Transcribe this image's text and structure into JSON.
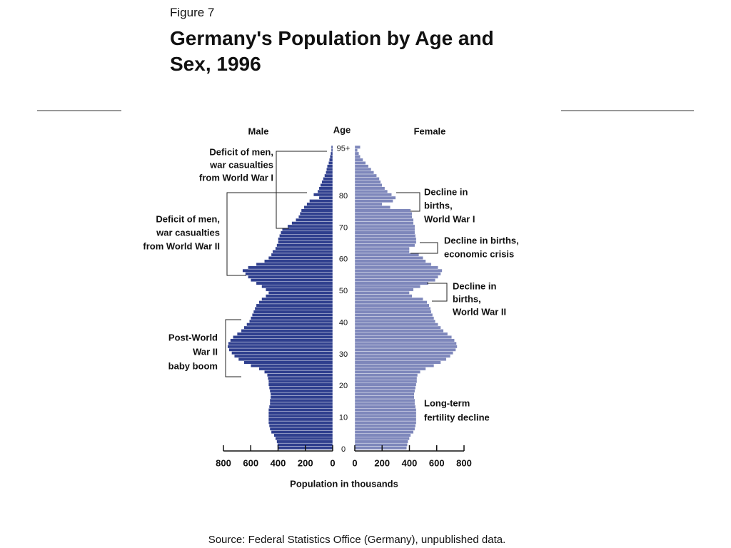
{
  "figure_label": "Figure 7",
  "source": "Source: Federal Statistics Office (Germany), unpublished data.",
  "chart_data": {
    "type": "pyramid",
    "title": "Germany's Population by Age and Sex, 1996",
    "age_axis_label": "Age",
    "x_axis_label": "Population in thousands",
    "ages": [
      0,
      1,
      2,
      3,
      4,
      5,
      6,
      7,
      8,
      9,
      10,
      11,
      12,
      13,
      14,
      15,
      16,
      17,
      18,
      19,
      20,
      21,
      22,
      23,
      24,
      25,
      26,
      27,
      28,
      29,
      30,
      31,
      32,
      33,
      34,
      35,
      36,
      37,
      38,
      39,
      40,
      41,
      42,
      43,
      44,
      45,
      46,
      47,
      48,
      49,
      50,
      51,
      52,
      53,
      54,
      55,
      56,
      57,
      58,
      59,
      60,
      61,
      62,
      63,
      64,
      65,
      66,
      67,
      68,
      69,
      70,
      71,
      72,
      73,
      74,
      75,
      76,
      77,
      78,
      79,
      80,
      81,
      82,
      83,
      84,
      85,
      86,
      87,
      88,
      89,
      90,
      91,
      92,
      93,
      94,
      95
    ],
    "agelim": [
      0,
      96
    ],
    "ageticks": [
      0,
      10,
      20,
      30,
      40,
      50,
      60,
      70,
      80,
      {
        "value": 95,
        "label": "95+"
      }
    ],
    "xlim": [
      0,
      800
    ],
    "xticks": [
      800,
      600,
      400,
      200,
      0
    ],
    "series": [
      {
        "name": "Male",
        "color": "#2f3f8e",
        "side": "left",
        "values": [
          400,
          405,
          410,
          420,
          430,
          450,
          460,
          465,
          470,
          470,
          470,
          470,
          470,
          465,
          460,
          460,
          455,
          455,
          460,
          465,
          470,
          470,
          475,
          480,
          500,
          540,
          600,
          650,
          690,
          720,
          740,
          760,
          770,
          765,
          750,
          730,
          700,
          670,
          650,
          630,
          610,
          600,
          590,
          580,
          570,
          560,
          540,
          520,
          490,
          470,
          490,
          520,
          560,
          600,
          620,
          640,
          660,
          620,
          560,
          500,
          470,
          450,
          440,
          420,
          410,
          400,
          400,
          390,
          380,
          370,
          330,
          300,
          270,
          250,
          240,
          230,
          210,
          190,
          170,
          100,
          140,
          110,
          100,
          90,
          80,
          70,
          60,
          50,
          45,
          40,
          30,
          25,
          20,
          15,
          10,
          10
        ]
      },
      {
        "name": "Female",
        "color": "#7e87bb",
        "side": "right",
        "values": [
          380,
          385,
          390,
          400,
          410,
          430,
          440,
          445,
          450,
          450,
          450,
          450,
          450,
          445,
          440,
          440,
          435,
          435,
          440,
          445,
          450,
          455,
          455,
          460,
          480,
          520,
          580,
          630,
          670,
          700,
          720,
          740,
          750,
          745,
          730,
          710,
          680,
          650,
          630,
          610,
          590,
          580,
          570,
          560,
          555,
          545,
          530,
          500,
          420,
          400,
          430,
          480,
          540,
          590,
          610,
          630,
          640,
          610,
          560,
          520,
          500,
          470,
          400,
          400,
          440,
          450,
          450,
          445,
          440,
          440,
          440,
          430,
          430,
          420,
          420,
          410,
          260,
          200,
          280,
          300,
          270,
          240,
          220,
          200,
          190,
          180,
          160,
          140,
          120,
          100,
          80,
          60,
          40,
          30,
          20,
          40
        ]
      }
    ],
    "annotations": [
      {
        "lines": [
          "Deficit of men,",
          "war casualties",
          "from World War I"
        ]
      },
      {
        "lines": [
          "Deficit of men,",
          "war casualties",
          "from World War II"
        ]
      },
      {
        "lines": [
          "Post-World",
          "War II",
          "baby boom"
        ]
      },
      {
        "lines": [
          "Decline in",
          "births,",
          "World War I"
        ]
      },
      {
        "lines": [
          "Decline in births,",
          "economic crisis"
        ]
      },
      {
        "lines": [
          "Decline in",
          "births,",
          "World War II"
        ]
      },
      {
        "lines": [
          "Long-term",
          "fertility decline"
        ]
      }
    ]
  }
}
